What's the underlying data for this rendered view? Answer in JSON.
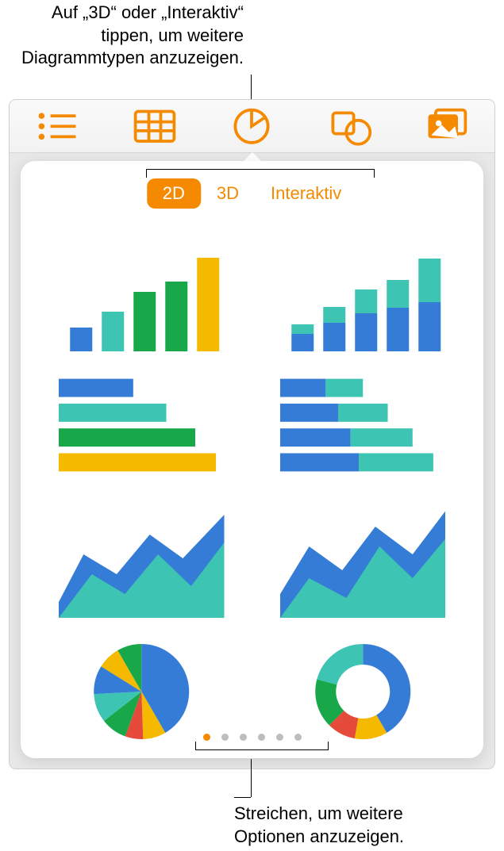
{
  "callout_top": {
    "l1": "Auf „3D“ oder „Interaktiv“",
    "l2": "tippen, um weitere",
    "l3": "Diagrammtypen anzuzeigen."
  },
  "callout_bottom": {
    "l1": "Streichen, um weitere",
    "l2": "Optionen anzuzeigen."
  },
  "seg": {
    "a": "2D",
    "b": "3D",
    "c": "Interaktiv"
  },
  "colors": {
    "orange": "#f58a00",
    "blue": "#357cd6",
    "teal": "#3dc4b2",
    "green": "#18a849",
    "yellow": "#f5b900",
    "red": "#e64a3a"
  },
  "charts": {
    "col_simple": {
      "type": "bar",
      "vals": [
        30,
        50,
        75,
        88,
        118
      ],
      "colors": [
        "#357cd6",
        "#3dc4b2",
        "#18a849",
        "#18a849",
        "#f5b900"
      ]
    },
    "col_stacked": {
      "type": "bar-stacked",
      "bottoms": [
        22,
        36,
        48,
        55,
        62
      ],
      "tops": [
        12,
        20,
        30,
        35,
        55
      ],
      "c_bottom": "#357cd6",
      "c_top": "#3dc4b2"
    },
    "bar_simple": {
      "type": "hbar",
      "vals": [
        90,
        130,
        165,
        190
      ],
      "colors": [
        "#357cd6",
        "#3dc4b2",
        "#18a849",
        "#f5b900"
      ]
    },
    "bar_stacked": {
      "type": "hbar-stacked",
      "a": [
        55,
        70,
        85,
        95
      ],
      "b": [
        45,
        60,
        75,
        90
      ],
      "c_a": "#357cd6",
      "c_b": "#3dc4b2"
    },
    "area_single": {
      "type": "area",
      "back": "#357cd6",
      "front": "#3dc4b2"
    },
    "area_double": {
      "type": "area",
      "back": "#357cd6",
      "front": "#3dc4b2"
    },
    "pie": {
      "type": "pie",
      "slices": [
        {
          "v": 150,
          "c": "#357cd6"
        },
        {
          "v": 28,
          "c": "#f5b900"
        },
        {
          "v": 22,
          "c": "#e64a3a"
        },
        {
          "v": 32,
          "c": "#18a849"
        },
        {
          "v": 35,
          "c": "#3dc4b2"
        },
        {
          "v": 35,
          "c": "#357cd6"
        },
        {
          "v": 28,
          "c": "#f5b900"
        },
        {
          "v": 30,
          "c": "#18a849"
        }
      ]
    },
    "donut": {
      "type": "donut",
      "slices": [
        {
          "v": 150,
          "c": "#357cd6"
        },
        {
          "v": 40,
          "c": "#f5b900"
        },
        {
          "v": 35,
          "c": "#e64a3a"
        },
        {
          "v": 60,
          "c": "#18a849"
        },
        {
          "v": 75,
          "c": "#3dc4b2"
        }
      ]
    }
  },
  "page_dots": {
    "count": 6,
    "active": 0
  }
}
